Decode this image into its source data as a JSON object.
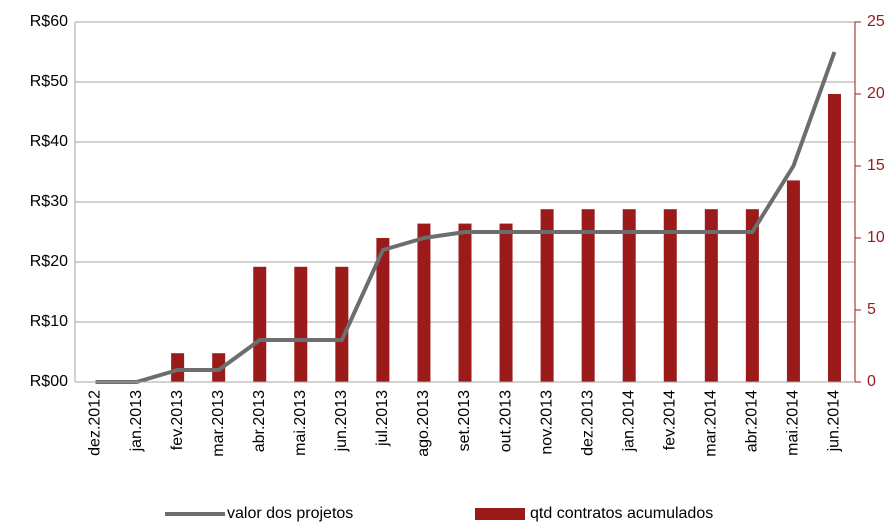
{
  "chart_data": {
    "type": "combo",
    "categories": [
      "dez.2012",
      "jan.2013",
      "fev.2013",
      "mar.2013",
      "abr.2013",
      "mai.2013",
      "jun.2013",
      "jul.2013",
      "ago.2013",
      "set.2013",
      "out.2013",
      "nov.2013",
      "dez.2013",
      "jan.2014",
      "fev.2014",
      "mar.2014",
      "abr.2014",
      "mai.2014",
      "jun.2014"
    ],
    "series": [
      {
        "name": "valor dos projetos",
        "type": "line",
        "color": "#6d6d6d",
        "values": [
          0,
          0,
          2,
          2,
          7,
          7,
          7,
          22,
          24,
          25,
          25,
          25,
          25,
          25,
          25,
          25,
          25,
          36,
          55
        ]
      },
      {
        "name": "qtd contratos acumulados",
        "type": "bar",
        "axis": "y2",
        "color": "#9b1b1b",
        "values": [
          0,
          0,
          2,
          2,
          8,
          8,
          8,
          10,
          11,
          11,
          11,
          12,
          12,
          12,
          12,
          12,
          12,
          14,
          20
        ]
      }
    ],
    "ylim": [
      0,
      60
    ],
    "yticks": [
      {
        "value": 0,
        "label": "R$00"
      },
      {
        "value": 10,
        "label": "R$10"
      },
      {
        "value": 20,
        "label": "R$20"
      },
      {
        "value": 30,
        "label": "R$30"
      },
      {
        "value": 40,
        "label": "R$40"
      },
      {
        "value": 50,
        "label": "R$50"
      },
      {
        "value": 60,
        "label": "R$60"
      }
    ],
    "y2lim": [
      0,
      25
    ],
    "y2ticks": [
      0,
      5,
      10,
      15,
      20,
      25
    ],
    "grid": true,
    "legend": "bottom"
  }
}
